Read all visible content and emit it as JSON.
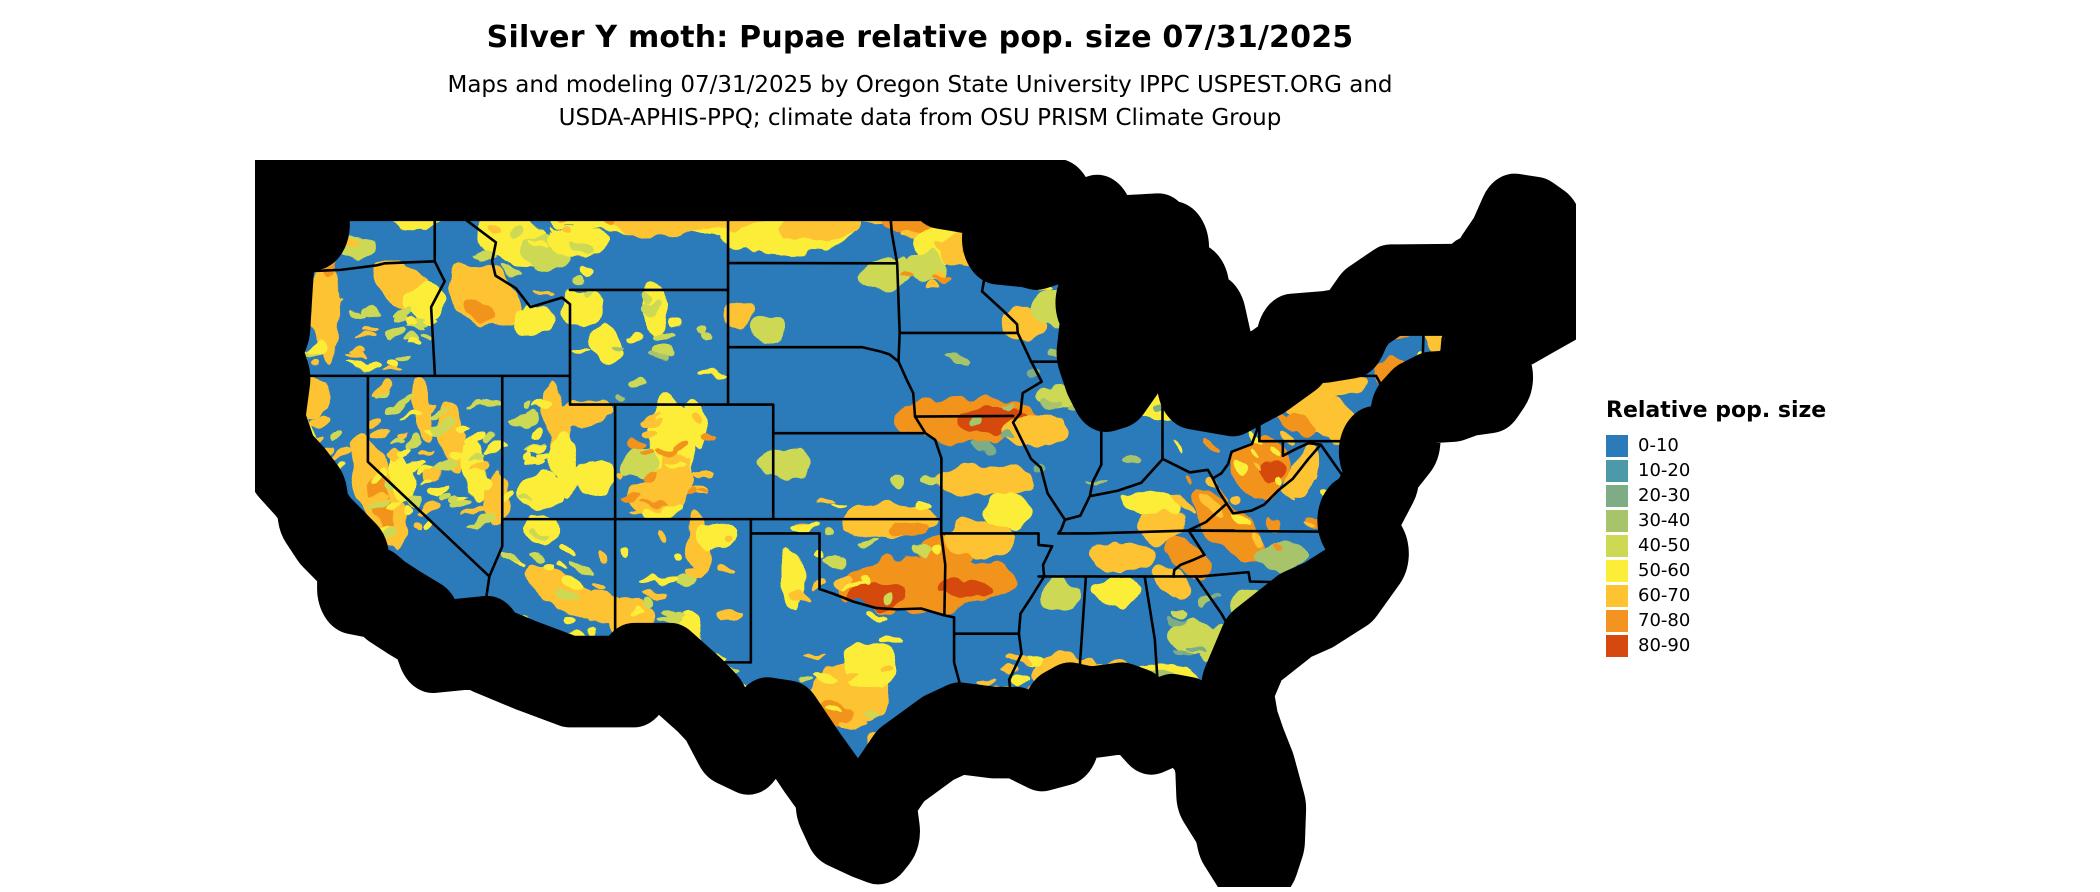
{
  "header": {
    "title": "Silver Y moth: Pupae relative pop. size 07/31/2025",
    "subtitle_line1": "Maps and modeling 07/31/2025 by Oregon State University IPPC USPEST.ORG and",
    "subtitle_line2": "USDA-APHIS-PPQ; climate data from OSU PRISM Climate Group"
  },
  "legend": {
    "title": "Relative pop. size",
    "classes": [
      {
        "label": "0-10",
        "color": "#2b7bba"
      },
      {
        "label": "10-20",
        "color": "#4b99a9"
      },
      {
        "label": "20-30",
        "color": "#7ead85"
      },
      {
        "label": "30-40",
        "color": "#a8c46a"
      },
      {
        "label": "40-50",
        "color": "#cdd955"
      },
      {
        "label": "50-60",
        "color": "#fcee38"
      },
      {
        "label": "60-70",
        "color": "#fdc330"
      },
      {
        "label": "70-80",
        "color": "#f2941f"
      },
      {
        "label": "80-90",
        "color": "#d5490f"
      }
    ]
  },
  "map": {
    "region": "Contiguous United States",
    "summary": "Raster map of Silver Y moth pupae relative population size. Mostly blue (0-10) with yellow-to-red hotspots across the northern Plains (Montana/North Dakota/northern Minnesota), the mountain West, the Ozarks and southern Plains, the Gulf Coast, Florida, the Appalachians, and northern New England; black state boundary lines on white background.",
    "base_color": "#2b7bba",
    "border_color": "#000000",
    "water_color": "#ffffff"
  }
}
